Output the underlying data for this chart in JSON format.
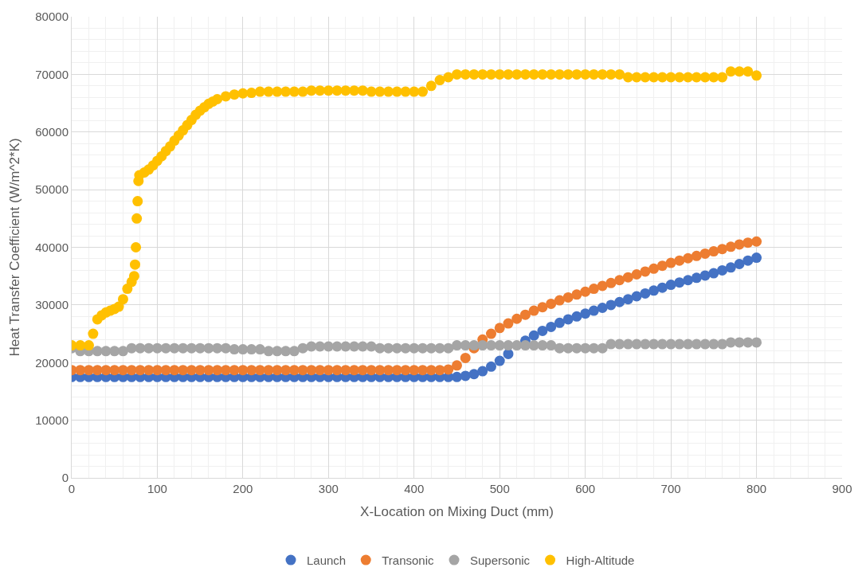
{
  "chart_data": {
    "type": "scatter",
    "xlabel": "X-Location on Mixing Duct (mm)",
    "ylabel": "Heat Transfer Coefficient (W/m^2*K)",
    "x": [
      0,
      10,
      20,
      30,
      40,
      50,
      60,
      70,
      80,
      90,
      100,
      110,
      120,
      130,
      140,
      150,
      160,
      170,
      180,
      190,
      200,
      210,
      220,
      230,
      240,
      250,
      260,
      270,
      280,
      290,
      300,
      310,
      320,
      330,
      340,
      350,
      360,
      370,
      380,
      390,
      400,
      410,
      420,
      430,
      440,
      450,
      460,
      470,
      480,
      490,
      500,
      510,
      520,
      530,
      540,
      550,
      560,
      570,
      580,
      590,
      600,
      610,
      620,
      630,
      640,
      650,
      660,
      670,
      680,
      690,
      700,
      710,
      720,
      730,
      740,
      750,
      760,
      770,
      780,
      790,
      800
    ],
    "series": [
      {
        "name": "Launch",
        "color": "#4472c4",
        "values": [
          17500,
          17500,
          17500,
          17500,
          17500,
          17500,
          17500,
          17500,
          17500,
          17500,
          17500,
          17500,
          17500,
          17500,
          17500,
          17500,
          17500,
          17500,
          17500,
          17500,
          17500,
          17500,
          17500,
          17500,
          17500,
          17500,
          17500,
          17500,
          17500,
          17500,
          17500,
          17500,
          17500,
          17500,
          17500,
          17500,
          17500,
          17500,
          17500,
          17500,
          17500,
          17500,
          17500,
          17500,
          17500,
          17500,
          17700,
          18000,
          18500,
          19300,
          20300,
          21500,
          null,
          23800,
          24700,
          25500,
          26200,
          26900,
          27500,
          28000,
          28500,
          29000,
          29500,
          30000,
          30500,
          31000,
          31500,
          32000,
          32500,
          33000,
          33500,
          33900,
          34300,
          34700,
          35100,
          35500,
          36000,
          36500,
          37100,
          37700,
          38200
        ]
      },
      {
        "name": "Transonic",
        "color": "#ed7d31",
        "values": [
          18700,
          18700,
          18700,
          18700,
          18700,
          18700,
          18700,
          18700,
          18700,
          18700,
          18700,
          18700,
          18700,
          18700,
          18700,
          18700,
          18700,
          18700,
          18700,
          18700,
          18700,
          18700,
          18700,
          18700,
          18700,
          18700,
          18700,
          18700,
          18700,
          18700,
          18700,
          18700,
          18700,
          18700,
          18700,
          18700,
          18700,
          18700,
          18700,
          18700,
          18700,
          18700,
          18700,
          18700,
          18800,
          19500,
          20800,
          22500,
          24000,
          25000,
          26000,
          26800,
          27600,
          28300,
          29000,
          29600,
          30200,
          30800,
          31300,
          31800,
          32300,
          32800,
          33300,
          33800,
          34300,
          34800,
          35300,
          35800,
          36300,
          36800,
          37300,
          37700,
          38100,
          38500,
          38900,
          39300,
          39700,
          40100,
          40500,
          40800,
          41000
        ]
      },
      {
        "name": "Supersonic",
        "color": "#a5a5a5",
        "values": [
          22500,
          22000,
          22000,
          22000,
          22000,
          22000,
          22000,
          22500,
          22500,
          22500,
          22500,
          22500,
          22500,
          22500,
          22500,
          22500,
          22500,
          22500,
          22500,
          22300,
          22300,
          22300,
          22300,
          22000,
          22000,
          22000,
          22000,
          22500,
          22800,
          22800,
          22800,
          22800,
          22800,
          22800,
          22800,
          22800,
          22500,
          22500,
          22500,
          22500,
          22500,
          22500,
          22500,
          22500,
          22500,
          23000,
          23000,
          23000,
          23000,
          23000,
          23000,
          23000,
          23000,
          23000,
          23000,
          23000,
          23000,
          22500,
          22500,
          22500,
          22500,
          22500,
          22500,
          23200,
          23200,
          23200,
          23200,
          23200,
          23200,
          23200,
          23200,
          23200,
          23200,
          23200,
          23200,
          23200,
          23200,
          23500,
          23500,
          23500,
          23500
        ]
      },
      {
        "name": "High-Altitude",
        "color": "#ffc000",
        "x": [
          0,
          10,
          20,
          25,
          30,
          35,
          40,
          45,
          50,
          55,
          60,
          65,
          70,
          73,
          74,
          75,
          76,
          77,
          78,
          79,
          85,
          90,
          95,
          100,
          105,
          110,
          115,
          120,
          125,
          130,
          135,
          140,
          145,
          150,
          155,
          160,
          165,
          170,
          180,
          190,
          200,
          210,
          220,
          230,
          240,
          250,
          260,
          270,
          280,
          290,
          300,
          310,
          320,
          330,
          340,
          350,
          360,
          370,
          380,
          390,
          400,
          410,
          420,
          430,
          440,
          450,
          460,
          470,
          480,
          490,
          500,
          510,
          520,
          530,
          540,
          550,
          560,
          570,
          580,
          590,
          600,
          610,
          620,
          630,
          640,
          650,
          660,
          670,
          680,
          690,
          700,
          710,
          720,
          730,
          740,
          750,
          760,
          770,
          780,
          790,
          800
        ],
        "values": [
          23000,
          23000,
          23000,
          25000,
          27500,
          28200,
          28700,
          29000,
          29300,
          29700,
          31000,
          32800,
          34000,
          35000,
          37000,
          40000,
          45000,
          48000,
          51500,
          52500,
          53000,
          53500,
          54200,
          55000,
          55800,
          56700,
          57500,
          58500,
          59400,
          60300,
          61200,
          62100,
          63000,
          63700,
          64300,
          64900,
          65300,
          65700,
          66200,
          66500,
          66700,
          66800,
          67000,
          67000,
          67000,
          67000,
          67000,
          67000,
          67200,
          67200,
          67200,
          67200,
          67200,
          67200,
          67200,
          67000,
          67000,
          67000,
          67000,
          67000,
          67000,
          67000,
          68000,
          69000,
          69500,
          70000,
          70000,
          70000,
          70000,
          70000,
          70000,
          70000,
          70000,
          70000,
          70000,
          70000,
          70000,
          70000,
          70000,
          70000,
          70000,
          70000,
          70000,
          70000,
          70000,
          69500,
          69500,
          69500,
          69500,
          69500,
          69500,
          69500,
          69500,
          69500,
          69500,
          69500,
          69500,
          70500,
          70500,
          70500,
          69800
        ]
      }
    ],
    "xlim": [
      0,
      900
    ],
    "xticks": [
      0,
      100,
      200,
      300,
      400,
      500,
      600,
      700,
      800,
      900
    ],
    "ylim": [
      0,
      80000
    ],
    "yticks": [
      0,
      10000,
      20000,
      30000,
      40000,
      50000,
      60000,
      70000,
      80000
    ],
    "grid": true,
    "legend": "bottom",
    "marker": "circle"
  }
}
